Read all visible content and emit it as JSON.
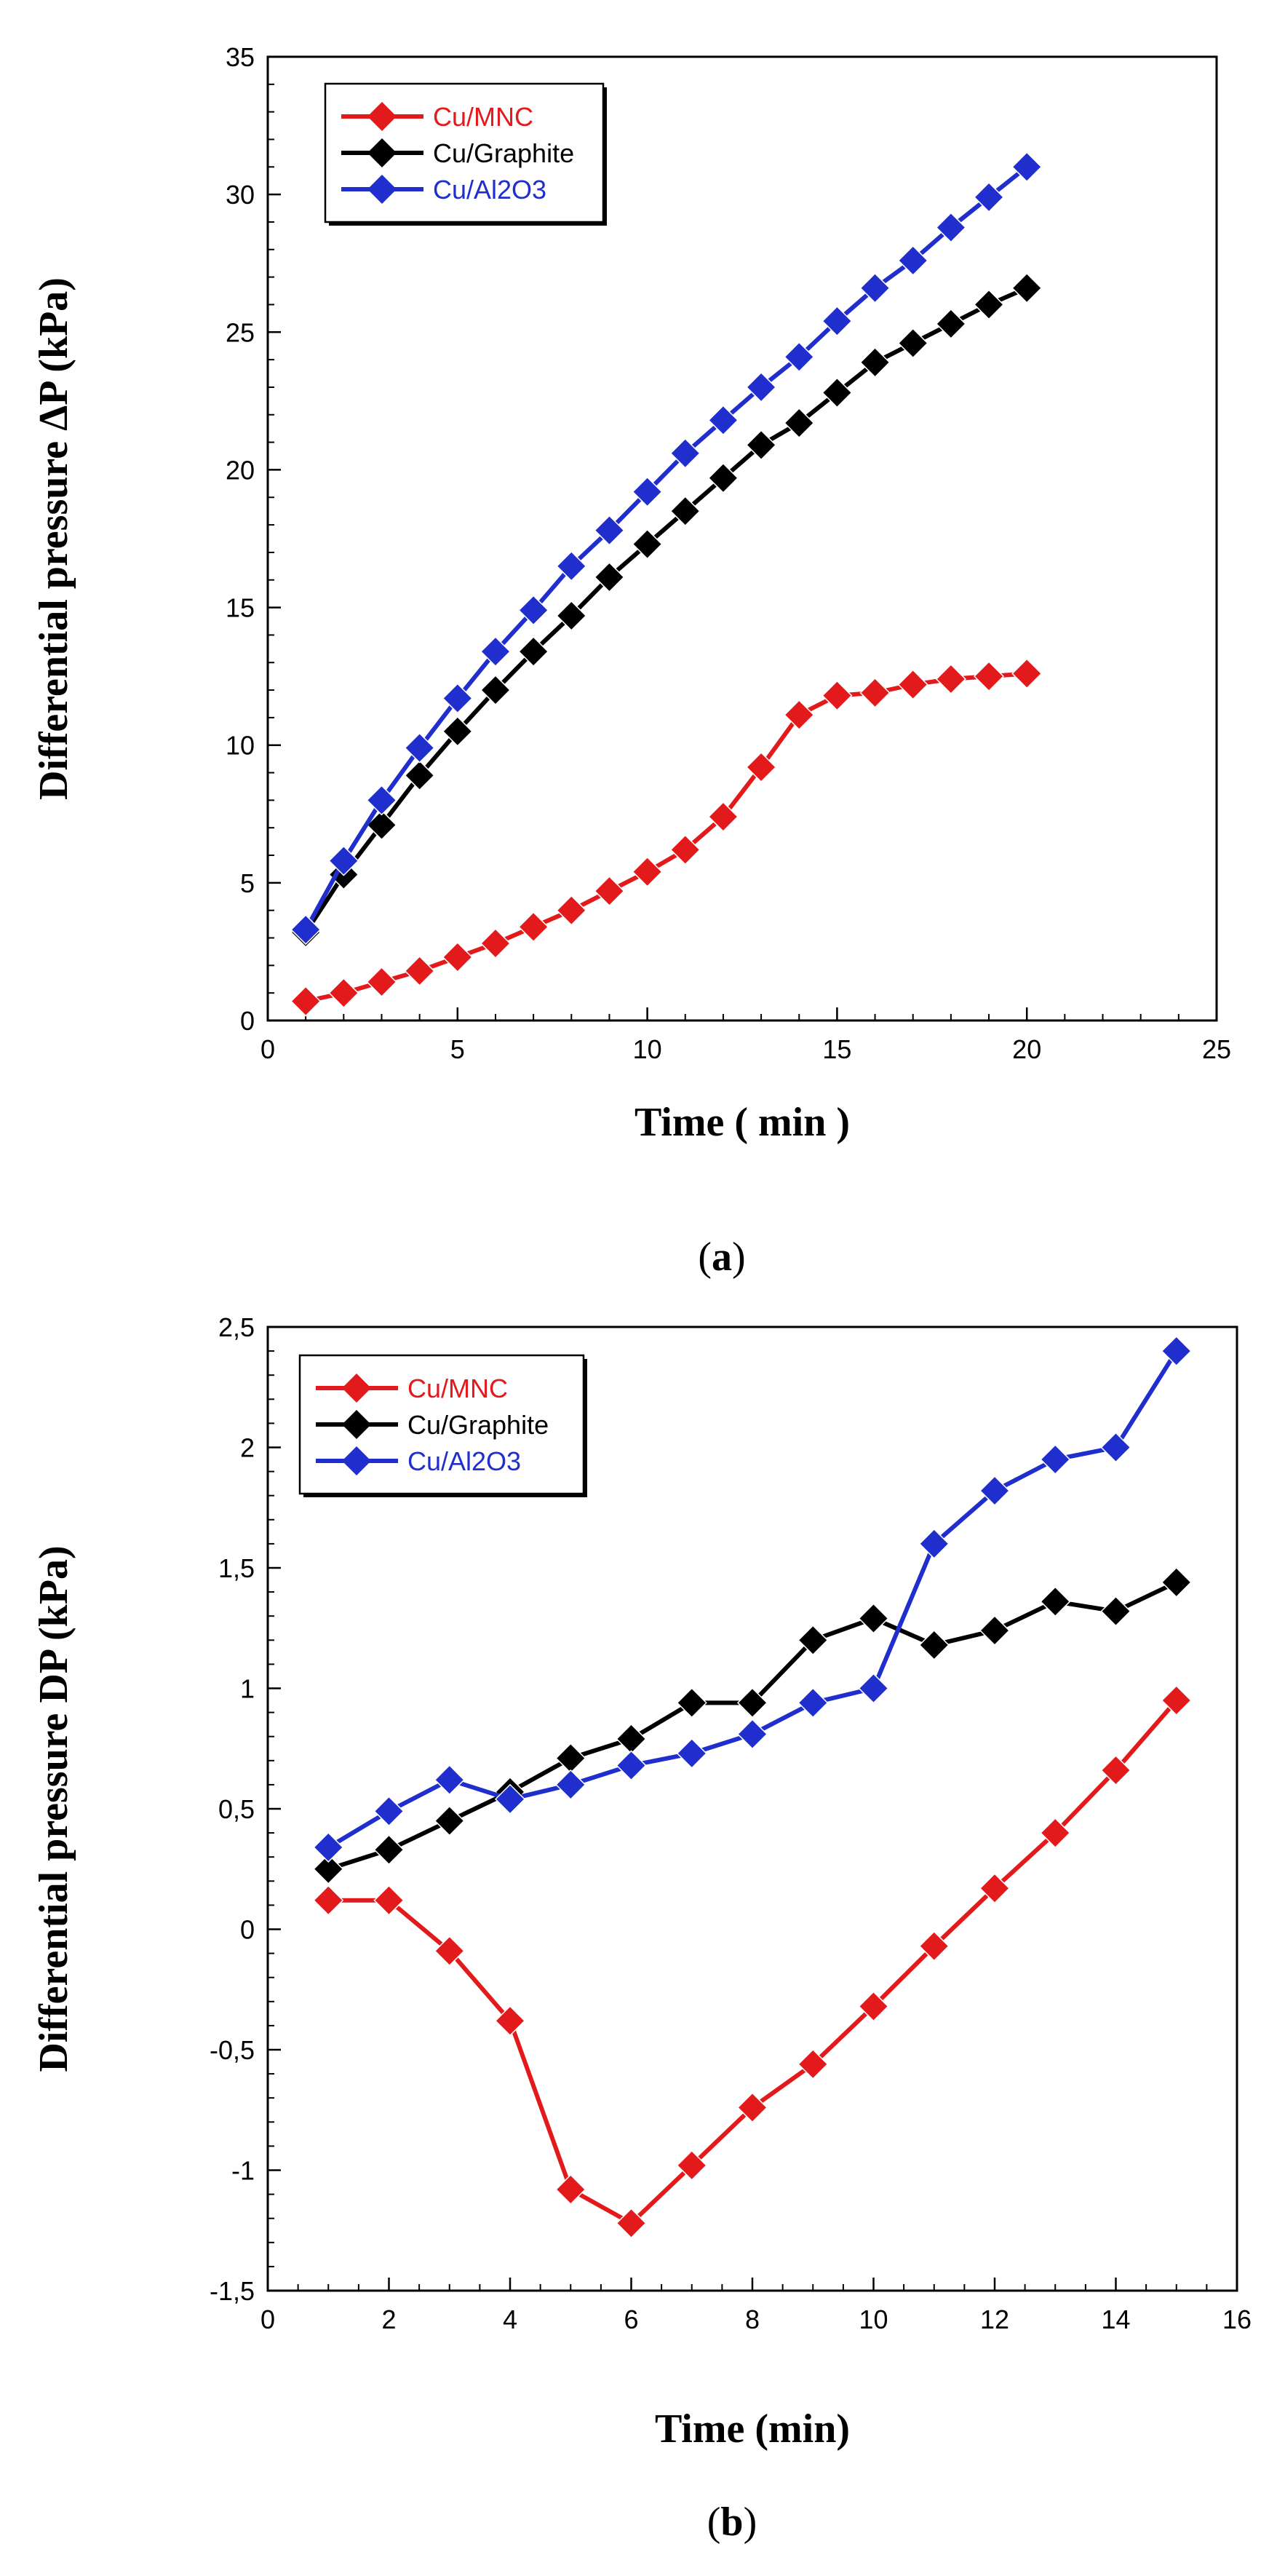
{
  "chart_data": [
    {
      "type": "line",
      "panel_label": "a",
      "xlabel": "Time ( min )",
      "ylabel": "Differential pressure ΔP (kPa)",
      "xlim": [
        0,
        25
      ],
      "ylim": [
        0,
        35
      ],
      "x_ticks": [
        "0",
        "5",
        "10",
        "15",
        "20",
        "25"
      ],
      "y_ticks": [
        "0",
        "5",
        "10",
        "15",
        "20",
        "25",
        "30",
        "35"
      ],
      "x_tick_values": [
        0,
        5,
        10,
        15,
        20,
        25
      ],
      "y_tick_values": [
        0,
        5,
        10,
        15,
        20,
        25,
        30,
        35
      ],
      "grid": false,
      "legend_position": "top-left",
      "x": [
        1,
        2,
        3,
        4,
        5,
        6,
        7,
        8,
        9,
        10,
        11,
        12,
        13,
        14,
        15,
        16,
        17,
        18,
        19,
        20
      ],
      "series": [
        {
          "name": "Cu/MNC",
          "color": "#e31a1c",
          "values": [
            0.7,
            1.0,
            1.4,
            1.8,
            2.3,
            2.8,
            3.4,
            4.0,
            4.7,
            5.4,
            6.2,
            7.4,
            9.2,
            11.1,
            11.8,
            11.9,
            12.2,
            12.4,
            12.5,
            12.6
          ]
        },
        {
          "name": "Cu/Graphite",
          "color": "#000000",
          "values": [
            3.2,
            5.3,
            7.1,
            8.9,
            10.5,
            12.0,
            13.4,
            14.7,
            16.1,
            17.3,
            18.5,
            19.7,
            20.9,
            21.7,
            22.8,
            23.9,
            24.6,
            25.3,
            26.0,
            26.6
          ]
        },
        {
          "name": "Cu/Al2O3",
          "color": "#1f2ecc",
          "values": [
            3.3,
            5.8,
            8.0,
            9.9,
            11.7,
            13.4,
            14.9,
            16.5,
            17.8,
            19.2,
            20.6,
            21.8,
            23.0,
            24.1,
            25.4,
            26.6,
            27.6,
            28.8,
            29.9,
            31.0
          ]
        }
      ]
    },
    {
      "type": "line",
      "panel_label": "b",
      "xlabel": "Time (min)",
      "ylabel": "Differential pressure DP (kPa)",
      "xlim": [
        0,
        16
      ],
      "ylim": [
        -1.5,
        2.5
      ],
      "x_ticks": [
        "0",
        "2",
        "4",
        "6",
        "8",
        "10",
        "12",
        "14",
        "16"
      ],
      "y_ticks": [
        "-1,5",
        "-1",
        "-0,5",
        "0",
        "0,5",
        "1",
        "1,5",
        "2",
        "2,5"
      ],
      "x_tick_values": [
        0,
        2,
        4,
        6,
        8,
        10,
        12,
        14,
        16
      ],
      "y_tick_values": [
        -1.5,
        -1,
        -0.5,
        0,
        0.5,
        1,
        1.5,
        2,
        2.5
      ],
      "grid": false,
      "legend_position": "top-left",
      "x": [
        1,
        2,
        3,
        4,
        5,
        6,
        7,
        8,
        9,
        10,
        11,
        12,
        13,
        14,
        15
      ],
      "series": [
        {
          "name": "Cu/MNC",
          "color": "#e31a1c",
          "values": [
            0.12,
            0.12,
            -0.09,
            -0.38,
            -1.08,
            -1.22,
            -0.98,
            -0.74,
            -0.56,
            -0.32,
            -0.07,
            0.17,
            0.4,
            0.66,
            0.95
          ]
        },
        {
          "name": "Cu/Graphite",
          "color": "#000000",
          "values": [
            0.25,
            0.33,
            0.45,
            0.57,
            0.71,
            0.79,
            0.94,
            0.94,
            1.2,
            1.29,
            1.18,
            1.24,
            1.36,
            1.32,
            1.44
          ]
        },
        {
          "name": "Cu/Al2O3",
          "color": "#1f2ecc",
          "values": [
            0.34,
            0.49,
            0.62,
            0.54,
            0.6,
            0.68,
            0.73,
            0.81,
            0.94,
            1.0,
            1.6,
            1.82,
            1.95,
            2.0,
            2.4
          ]
        }
      ]
    }
  ]
}
